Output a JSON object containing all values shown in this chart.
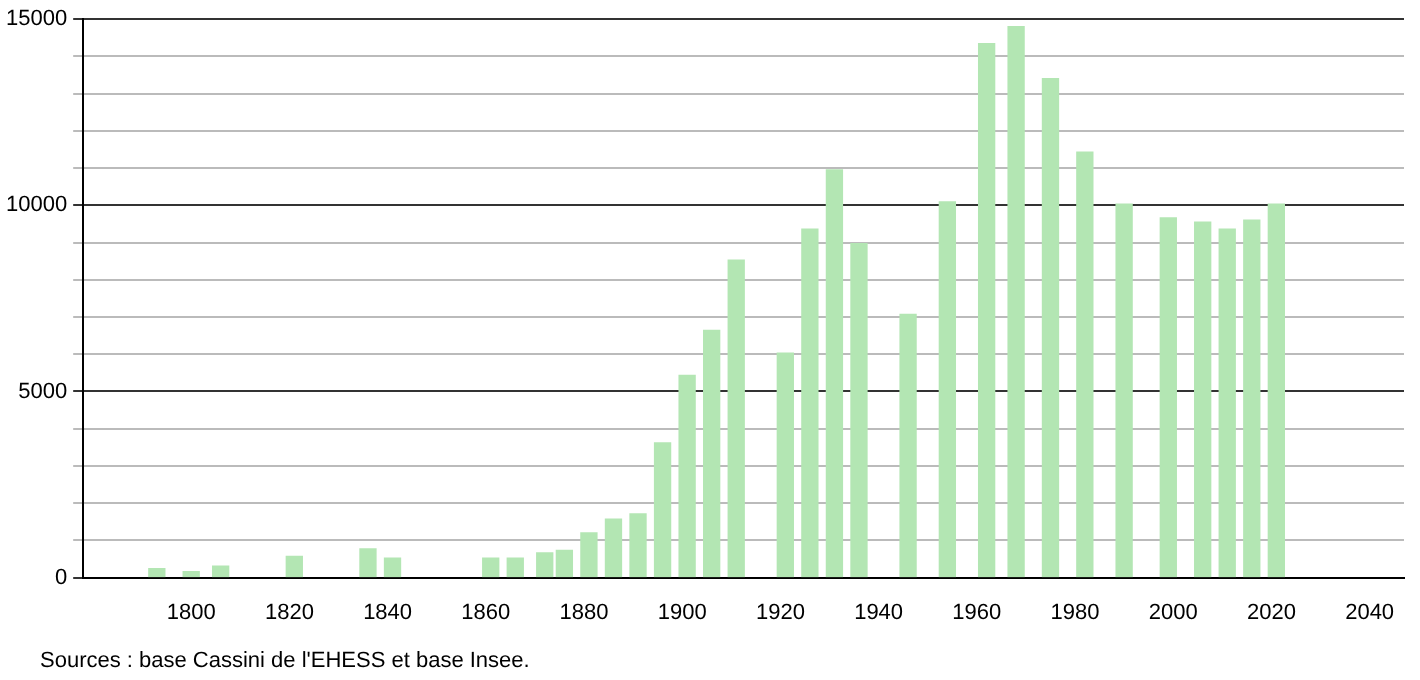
{
  "chart_data": {
    "type": "bar",
    "x": [
      1793,
      1800,
      1806,
      1821,
      1836,
      1841,
      1861,
      1866,
      1872,
      1876,
      1881,
      1886,
      1891,
      1896,
      1901,
      1906,
      1911,
      1921,
      1926,
      1931,
      1936,
      1946,
      1954,
      1962,
      1968,
      1975,
      1982,
      1990,
      1999,
      2006,
      2011,
      2016,
      2021
    ],
    "values": [
      240,
      160,
      310,
      570,
      770,
      520,
      520,
      520,
      660,
      730,
      1200,
      1570,
      1710,
      3620,
      5430,
      6640,
      8530,
      6030,
      9360,
      10950,
      8970,
      7070,
      10090,
      14340,
      14800,
      13400,
      11430,
      10030,
      9660,
      9550,
      9360,
      9600,
      10030
    ],
    "color": "#b3e6b3",
    "xlim": [
      1778,
      2047
    ],
    "xticks": [
      1800,
      1820,
      1840,
      1860,
      1880,
      1900,
      1920,
      1940,
      1960,
      1980,
      2000,
      2020,
      2040
    ],
    "ylim": [
      0,
      15000
    ],
    "yticks": [
      0,
      {
        "value": 1000,
        "label": null
      },
      {
        "value": 2000,
        "label": null
      },
      {
        "value": 3000,
        "label": null
      },
      {
        "value": 4000,
        "label": null
      },
      5000,
      {
        "value": 6000,
        "label": null
      },
      {
        "value": 7000,
        "label": null
      },
      {
        "value": 8000,
        "label": null
      },
      {
        "value": 9000,
        "label": null
      },
      10000,
      {
        "value": 11000,
        "label": null
      },
      {
        "value": 12000,
        "label": null
      },
      {
        "value": 13000,
        "label": null
      },
      {
        "value": 14000,
        "label": null
      },
      15000
    ],
    "grid": "y",
    "legend": false,
    "annotations": [
      "Sources : base Cassini de l'EHESS et base Insee."
    ]
  }
}
